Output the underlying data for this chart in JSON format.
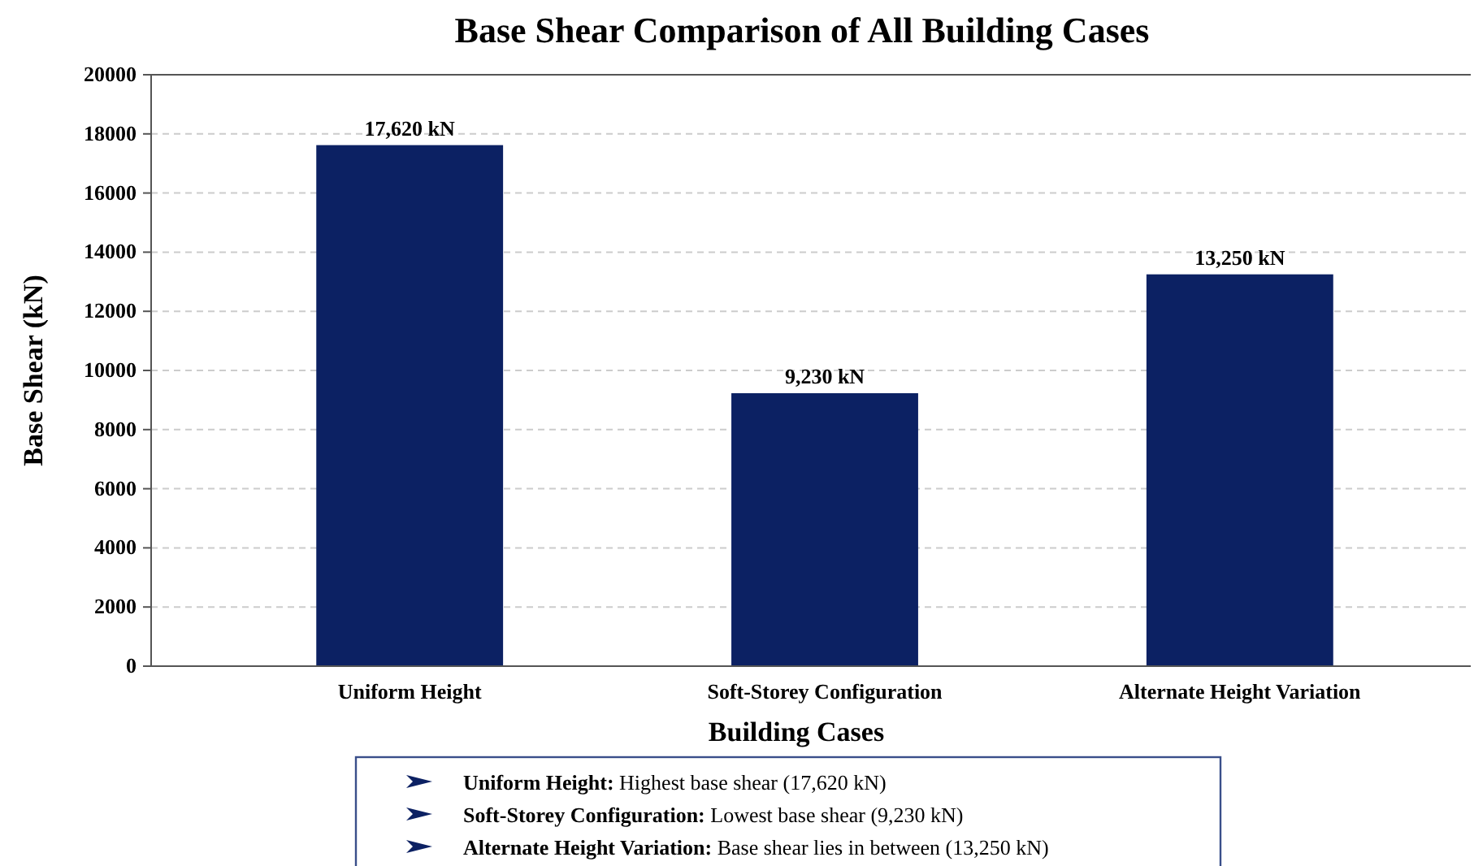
{
  "chart_data": {
    "type": "bar",
    "title": "Base Shear Comparison of All Building Cases",
    "xlabel": "Building Cases",
    "ylabel": "Base Shear (kN)",
    "categories": [
      "Uniform Height",
      "Soft-Storey Configuration",
      "Alternate Height Variation"
    ],
    "values": [
      17620,
      9230,
      13250
    ],
    "color": "#0c2163",
    "value_labels": [
      "17,620 kN",
      "9,230 kN",
      "13,250 kN"
    ],
    "ylim": [
      0,
      20000
    ],
    "yticks": [
      0,
      2000,
      4000,
      6000,
      8000,
      10000,
      12000,
      14000,
      16000,
      18000,
      20000
    ],
    "grid": "y",
    "annotations": [
      "Uniform Height: Highest base shear (17,620 kN)",
      "Soft-Storey Configuration: Lowest base shear (9,230 kN)",
      "Alternate Height Variation: Base shear lies in between (13,250 kN)"
    ]
  }
}
